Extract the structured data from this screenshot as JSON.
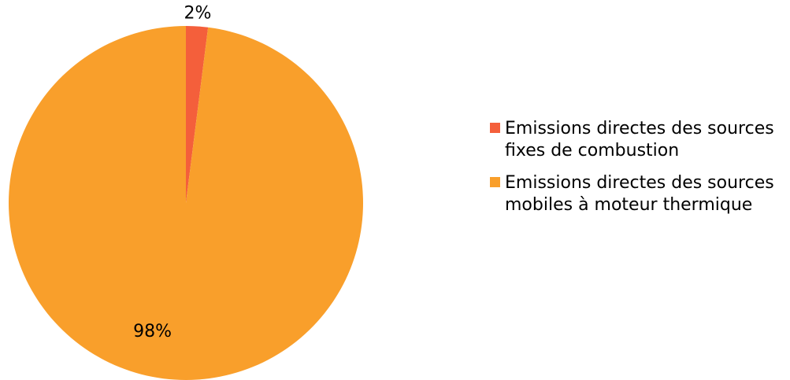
{
  "chart_data": {
    "type": "pie",
    "slices": [
      {
        "label": "Emissions directes des sources fixes de combustion",
        "value": 2,
        "display": "2%",
        "color": "#f45f3b"
      },
      {
        "label": "Emissions directes des sources mobiles à moteur thermique",
        "value": 98,
        "display": "98%",
        "color": "#f99f2b"
      }
    ],
    "legend_position": "right"
  },
  "legend": {
    "items": [
      {
        "label": "Emissions directes des sources fixes de combustion"
      },
      {
        "label": "Emissions directes des sources mobiles à moteur thermique"
      }
    ]
  }
}
